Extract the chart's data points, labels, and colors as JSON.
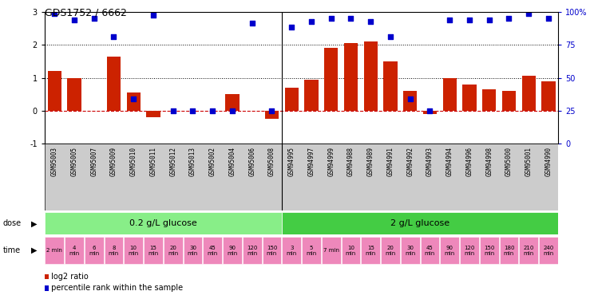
{
  "title": "GDS1752 / 6662",
  "samples": [
    "GSM95003",
    "GSM95005",
    "GSM95007",
    "GSM95009",
    "GSM95010",
    "GSM95011",
    "GSM95012",
    "GSM95013",
    "GSM95002",
    "GSM95004",
    "GSM95006",
    "GSM95008",
    "GSM94995",
    "GSM94997",
    "GSM94999",
    "GSM94988",
    "GSM94989",
    "GSM94991",
    "GSM94992",
    "GSM94993",
    "GSM94994",
    "GSM94996",
    "GSM94998",
    "GSM95000",
    "GSM95001",
    "GSM94990"
  ],
  "log2_ratio": [
    1.2,
    1.0,
    0.0,
    1.65,
    0.55,
    -0.2,
    0.0,
    0.0,
    0.0,
    0.5,
    0.0,
    -0.25,
    0.7,
    0.95,
    1.9,
    2.05,
    2.1,
    1.5,
    0.6,
    -0.1,
    1.0,
    0.8,
    0.65,
    0.6,
    1.05,
    0.9
  ],
  "percentile": [
    2.95,
    2.75,
    2.8,
    2.25,
    0.35,
    2.9,
    0.0,
    0.0,
    0.0,
    0.0,
    2.65,
    0.0,
    2.55,
    2.7,
    2.8,
    2.8,
    2.7,
    2.25,
    0.35,
    0.0,
    2.75,
    2.75,
    2.75,
    2.8,
    2.95,
    2.8
  ],
  "ylim_left": [
    -1,
    3
  ],
  "ylim_right": [
    0,
    100
  ],
  "bar_color": "#cc2200",
  "dot_color": "#0000cc",
  "background_color": "#ffffff",
  "label_bg_color": "#cccccc",
  "dose_color_1": "#88ee88",
  "dose_color_2": "#44cc44",
  "dose_label_1": "0.2 g/L glucose",
  "dose_label_2": "2 g/L glucose",
  "dose_split": 12,
  "time_color": "#ee88bb",
  "time_labels": [
    "2 min",
    "4\nmin",
    "6\nmin",
    "8\nmin",
    "10\nmin",
    "15\nmin",
    "20\nmin",
    "30\nmin",
    "45\nmin",
    "90\nmin",
    "120\nmin",
    "150\nmin",
    "3\nmin",
    "5\nmin",
    "7 min",
    "10\nmin",
    "15\nmin",
    "20\nmin",
    "30\nmin",
    "45\nmin",
    "90\nmin",
    "120\nmin",
    "150\nmin",
    "180\nmin",
    "210\nmin",
    "240\nmin"
  ],
  "legend_items": [
    {
      "color": "#cc2200",
      "label": "log2 ratio"
    },
    {
      "color": "#0000cc",
      "label": "percentile rank within the sample"
    }
  ]
}
